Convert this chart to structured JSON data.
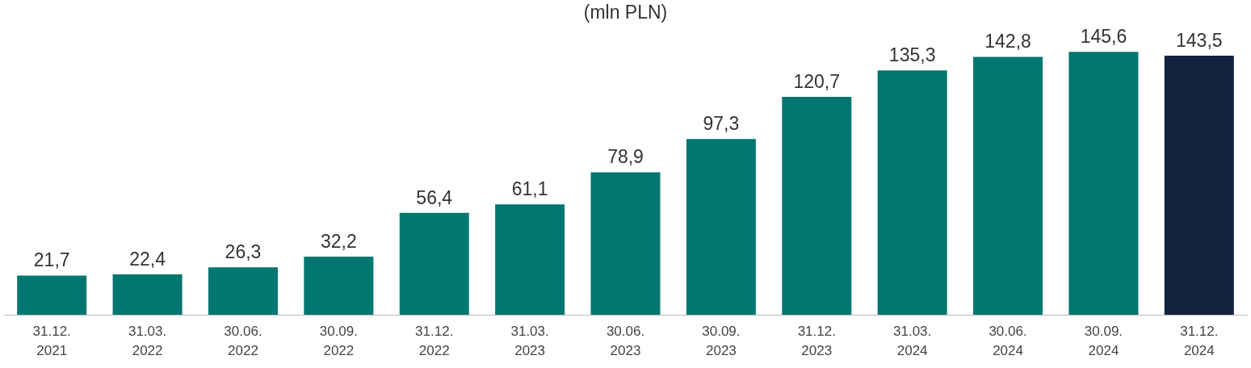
{
  "chart_data": {
    "type": "bar",
    "title": "(mln PLN)",
    "categories": [
      "31.12. 2021",
      "31.03. 2022",
      "30.06. 2022",
      "30.09. 2022",
      "31.12. 2022",
      "31.03. 2023",
      "30.06. 2023",
      "30.09. 2023",
      "31.12. 2023",
      "31.03. 2024",
      "30.06. 2024",
      "30.09. 2024",
      "31.12. 2024"
    ],
    "values": [
      21.7,
      22.4,
      26.3,
      32.2,
      56.4,
      61.1,
      78.9,
      97.3,
      120.7,
      135.3,
      142.8,
      145.6,
      143.5
    ],
    "value_labels": [
      "21,7",
      "22,4",
      "26,3",
      "32,2",
      "56,4",
      "61,1",
      "78,9",
      "97,3",
      "120,7",
      "135,3",
      "142,8",
      "145,6",
      "143,5"
    ],
    "colors": [
      "#007770",
      "#007770",
      "#007770",
      "#007770",
      "#007770",
      "#007770",
      "#007770",
      "#007770",
      "#007770",
      "#007770",
      "#007770",
      "#007770",
      "#13233f"
    ],
    "grid": false
  }
}
